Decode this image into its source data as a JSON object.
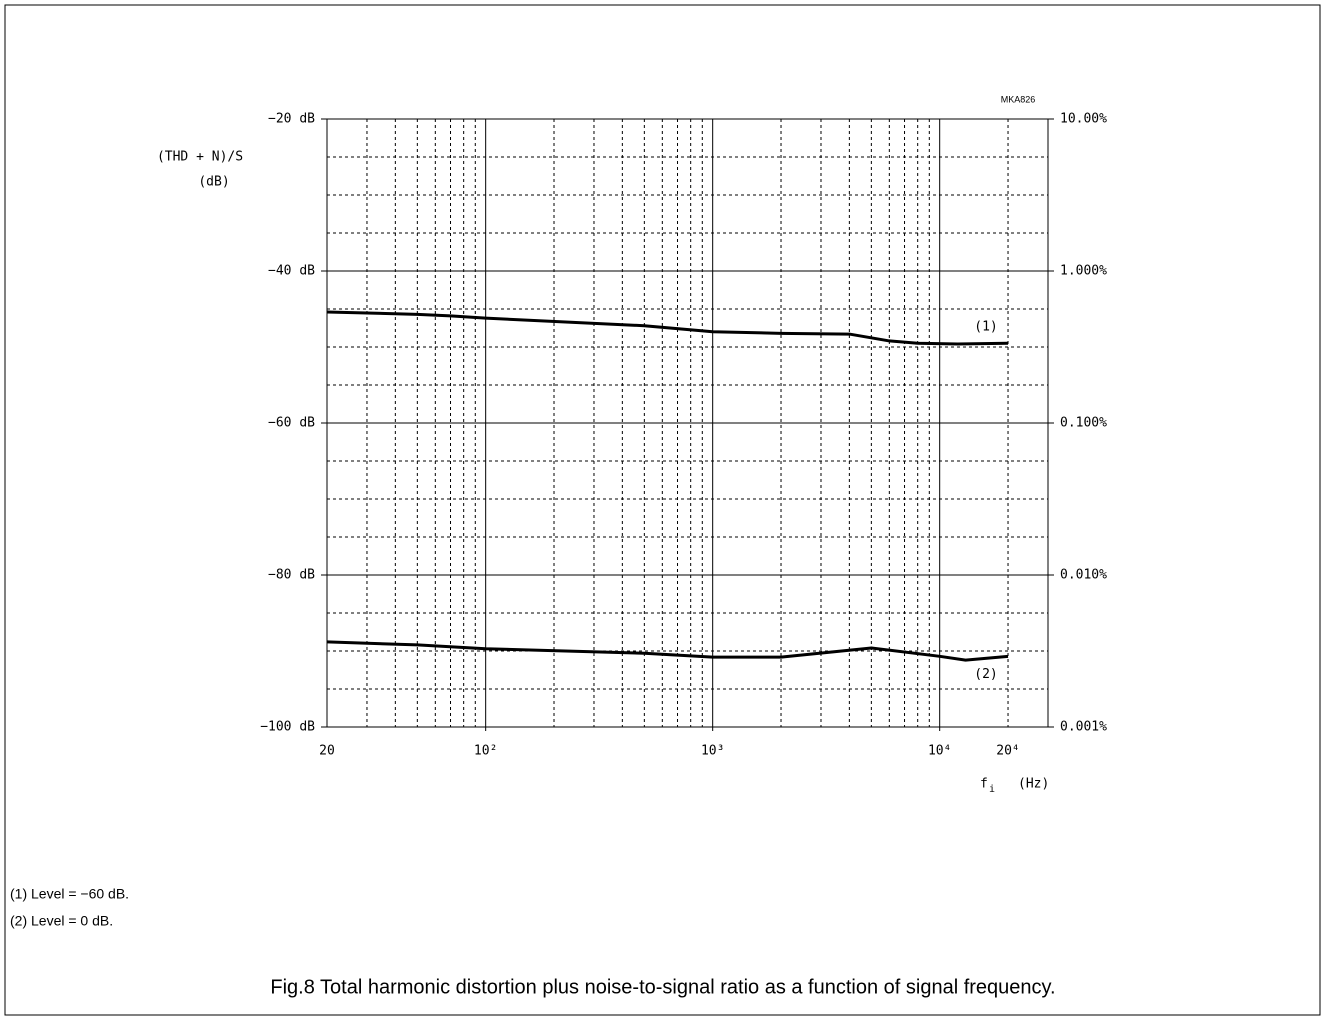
{
  "chart_data": {
    "type": "line",
    "code": "MKA826",
    "y_label": "(THD + N)/S",
    "y_unit": "(dB)",
    "x_symbol": "f",
    "x_symbol_sub": "i",
    "x_unit": "(Hz)",
    "x_log": true,
    "y2_log": true,
    "grid": true,
    "xlim": [
      20,
      30000
    ],
    "ylim": [
      -100,
      -20
    ],
    "y2lim": [
      0.001,
      10
    ],
    "xticks": [
      20,
      {
        "value": 100,
        "label": "10²"
      },
      {
        "value": 1000,
        "label": "10³"
      },
      {
        "value": 10000,
        "label": "10⁴"
      },
      {
        "value": 20000,
        "label": "20⁴"
      }
    ],
    "yticks": [
      {
        "value": -20,
        "label": "−20 dB"
      },
      {
        "value": -40,
        "label": "−40 dB"
      },
      {
        "value": -60,
        "label": "−60 dB"
      },
      {
        "value": -80,
        "label": "−80 dB"
      },
      {
        "value": -100,
        "label": "−100 dB"
      }
    ],
    "y2ticks": [
      {
        "value": 10,
        "label": "10.00%"
      },
      {
        "value": 1,
        "label": "1.000%"
      },
      {
        "value": 0.1,
        "label": "0.100%"
      },
      {
        "value": 0.01,
        "label": "0.010%"
      },
      {
        "value": 0.001,
        "label": "0.001%"
      }
    ],
    "minor_xticks": [
      30,
      40,
      50,
      60,
      70,
      80,
      90,
      200,
      300,
      400,
      500,
      600,
      700,
      800,
      900,
      2000,
      3000,
      4000,
      5000,
      6000,
      7000,
      8000,
      9000,
      20000
    ],
    "minor_yticks": [
      -25,
      -30,
      -35,
      -45,
      -50,
      -55,
      -65,
      -70,
      -75,
      -85,
      -90,
      -95
    ],
    "series": [
      {
        "name": "(1)",
        "color": "#000000",
        "x": [
          20,
          50,
          70,
          100,
          500,
          1000,
          2000,
          4000,
          6000,
          8000,
          12000,
          20000
        ],
        "values": [
          -45.4,
          -45.7,
          -45.9,
          -46.2,
          -47.2,
          -48.0,
          -48.2,
          -48.3,
          -49.2,
          -49.5,
          -49.6,
          -49.5
        ]
      },
      {
        "name": "(2)",
        "color": "#000000",
        "x": [
          20,
          50,
          100,
          500,
          1000,
          2000,
          5000,
          10000,
          13000,
          20000
        ],
        "values": [
          -88.8,
          -89.2,
          -89.7,
          -90.3,
          -90.8,
          -90.8,
          -89.6,
          -90.7,
          -91.2,
          -90.7
        ]
      }
    ],
    "notes": [
      "(1)  Level = −60 dB.",
      "(2)  Level = 0 dB."
    ],
    "caption": "Fig.8  Total harmonic distortion plus noise-to-signal ratio as a function of signal frequency."
  }
}
